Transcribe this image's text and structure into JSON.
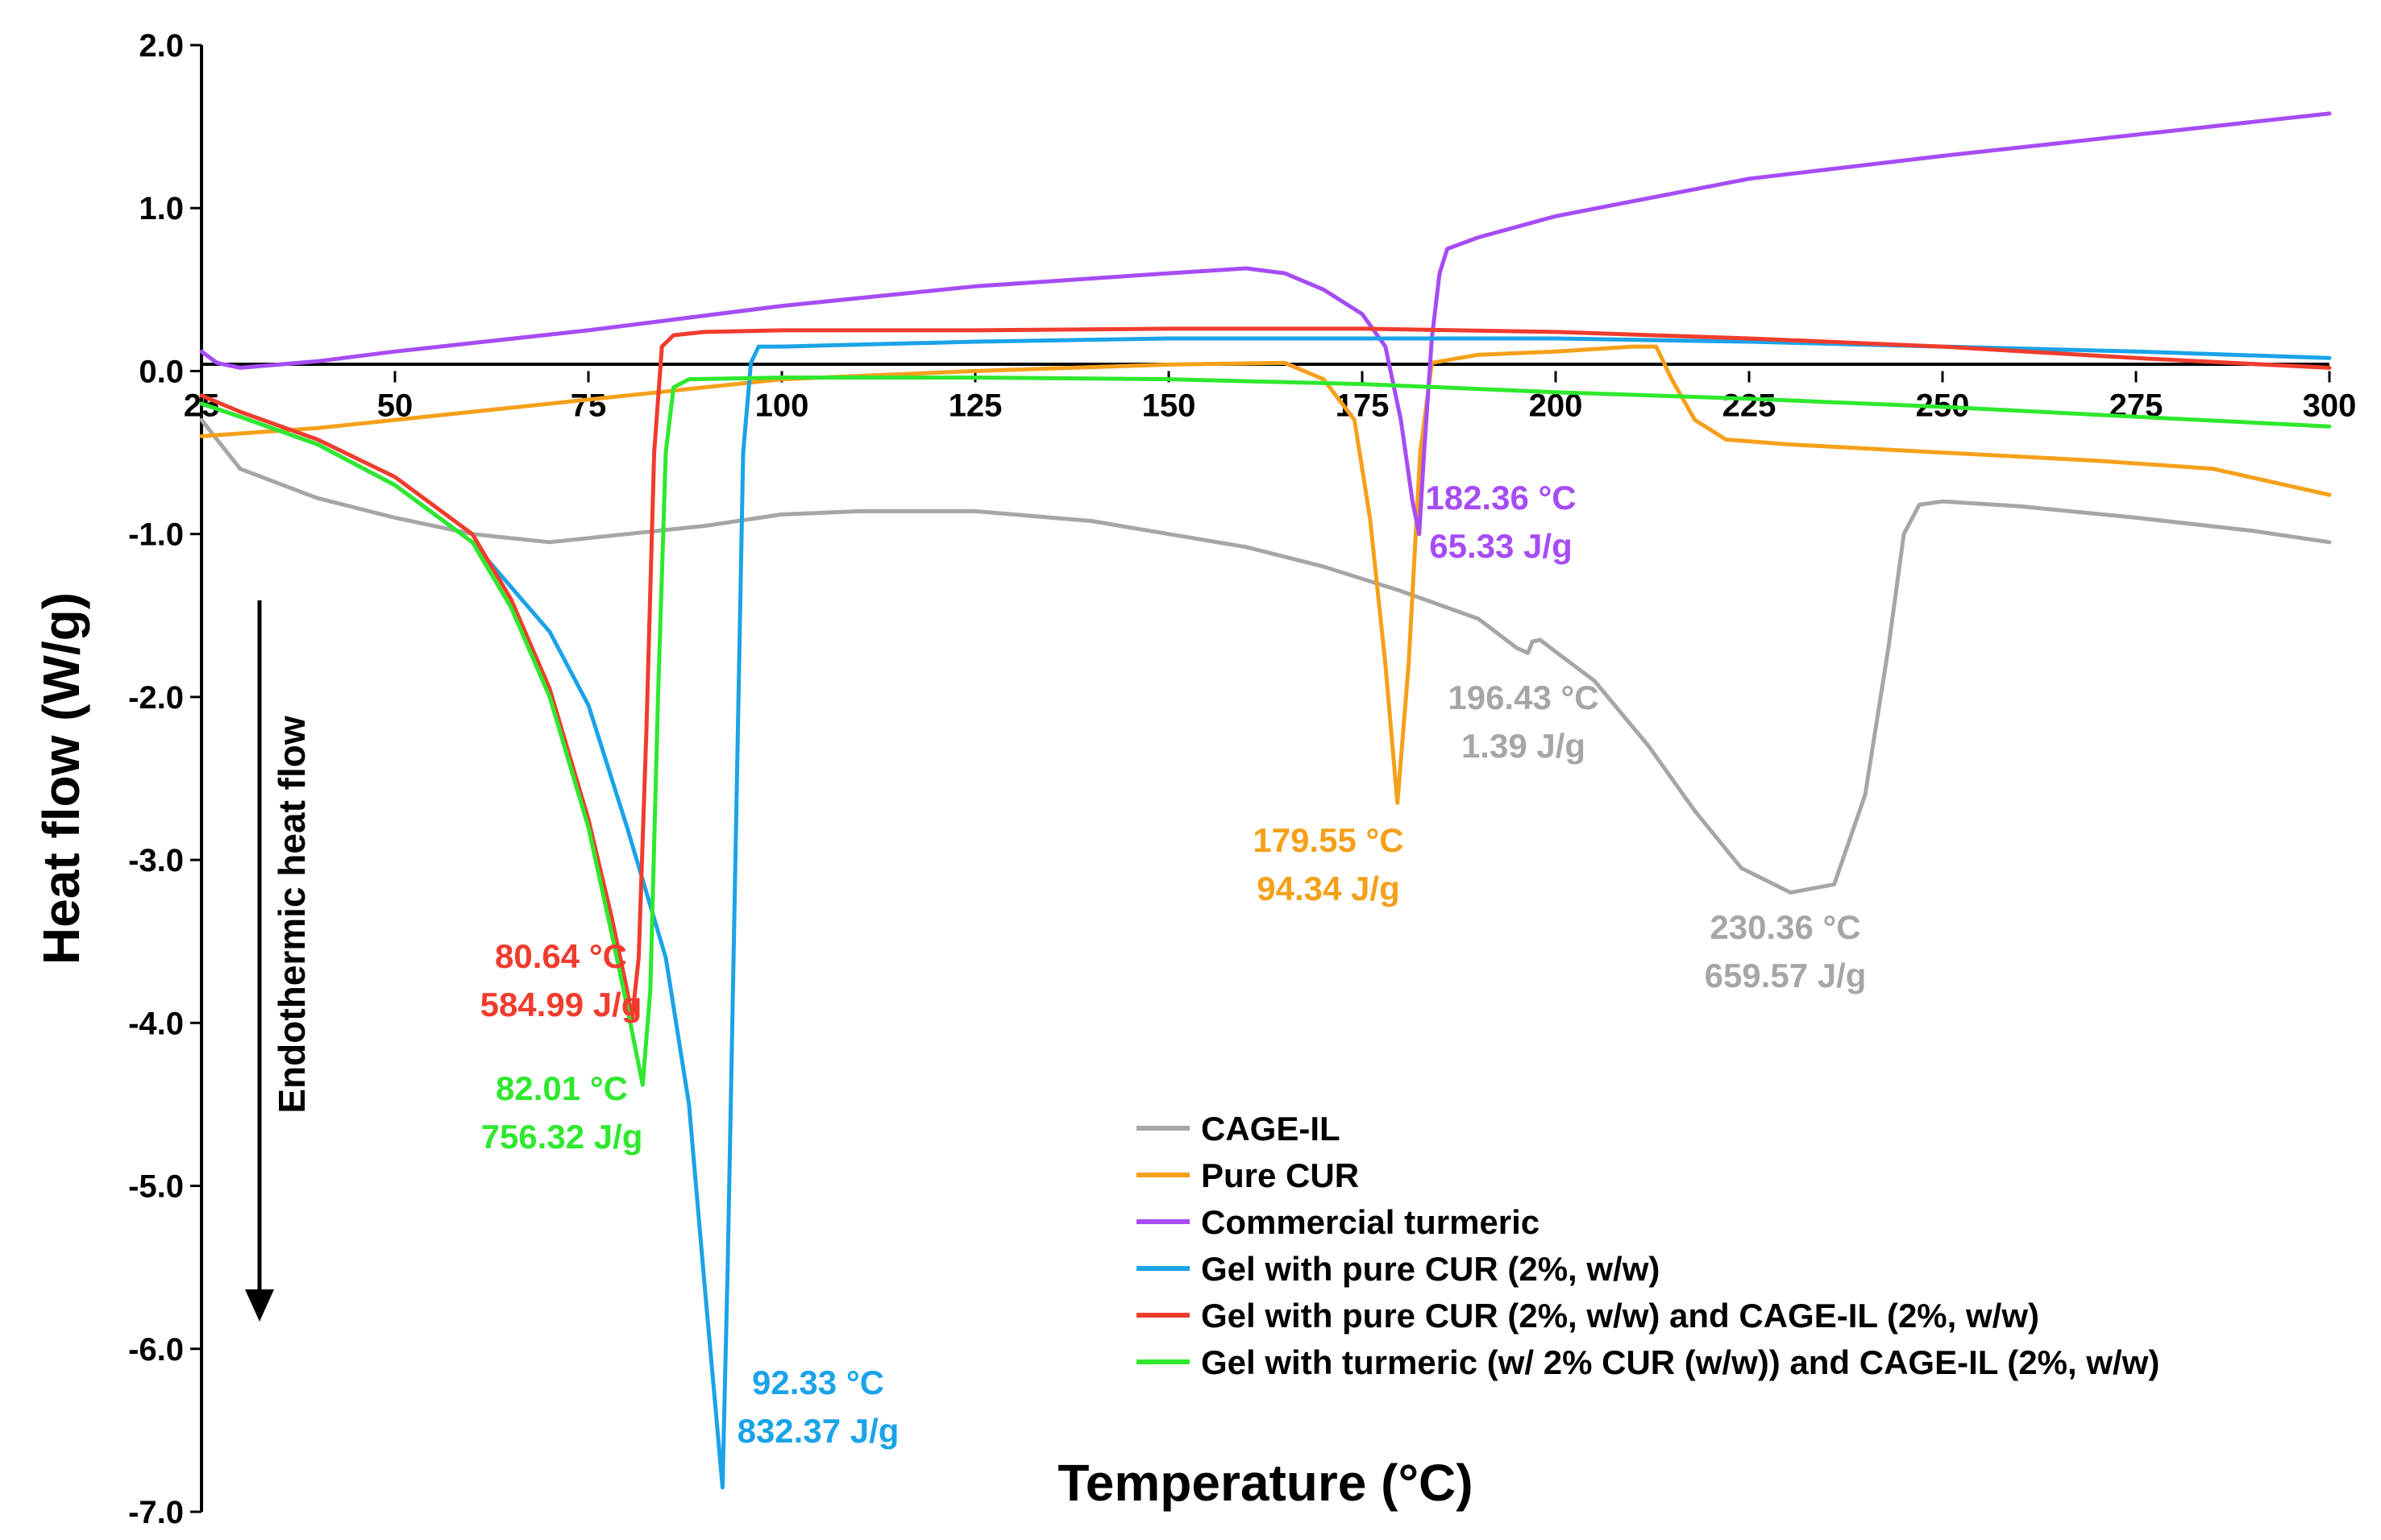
{
  "chart_data": {
    "type": "line",
    "title": "",
    "xlabel": "Temperature (°C)",
    "ylabel": "Heat flow (W/g)",
    "xlim": [
      25,
      300
    ],
    "ylim": [
      -7.0,
      2.0
    ],
    "x_ticks": [
      "25",
      "50",
      "75",
      "100",
      "125",
      "150",
      "175",
      "200",
      "225",
      "250",
      "275",
      "300"
    ],
    "y_ticks": [
      "2.0",
      "1.0",
      "0.0",
      "-1.0",
      "-2.0",
      "-3.0",
      "-4.0",
      "-5.0",
      "-6.0",
      "-7.0"
    ],
    "endotherm_label": "Endothermic heat flow",
    "series": [
      {
        "name": "CAGE-IL",
        "color": "#a6a6a6",
        "points": [
          [
            25,
            -0.3
          ],
          [
            30,
            -0.6
          ],
          [
            40,
            -0.78
          ],
          [
            50,
            -0.9
          ],
          [
            60,
            -1.0
          ],
          [
            70,
            -1.05
          ],
          [
            80,
            -1.0
          ],
          [
            90,
            -0.95
          ],
          [
            100,
            -0.88
          ],
          [
            110,
            -0.86
          ],
          [
            125,
            -0.86
          ],
          [
            140,
            -0.92
          ],
          [
            150,
            -1.0
          ],
          [
            160,
            -1.08
          ],
          [
            170,
            -1.2
          ],
          [
            180,
            -1.35
          ],
          [
            190,
            -1.52
          ],
          [
            195,
            -1.7
          ],
          [
            196.43,
            -1.73
          ],
          [
            197,
            -1.66
          ],
          [
            198,
            -1.65
          ],
          [
            205,
            -1.9
          ],
          [
            212,
            -2.3
          ],
          [
            218,
            -2.7
          ],
          [
            224,
            -3.05
          ],
          [
            230.36,
            -3.2
          ],
          [
            236,
            -3.15
          ],
          [
            240,
            -2.6
          ],
          [
            243,
            -1.7
          ],
          [
            245,
            -1.0
          ],
          [
            247,
            -0.82
          ],
          [
            250,
            -0.8
          ],
          [
            260,
            -0.83
          ],
          [
            275,
            -0.9
          ],
          [
            290,
            -0.98
          ],
          [
            300,
            -1.05
          ]
        ]
      },
      {
        "name": "Pure CUR",
        "color": "#f5a01a",
        "points": [
          [
            25,
            -0.4
          ],
          [
            40,
            -0.35
          ],
          [
            60,
            -0.25
          ],
          [
            80,
            -0.15
          ],
          [
            100,
            -0.05
          ],
          [
            125,
            0.0
          ],
          [
            150,
            0.04
          ],
          [
            165,
            0.05
          ],
          [
            170,
            -0.05
          ],
          [
            174,
            -0.3
          ],
          [
            176,
            -0.9
          ],
          [
            178,
            -1.8
          ],
          [
            179.55,
            -2.65
          ],
          [
            181,
            -1.8
          ],
          [
            182.5,
            -0.5
          ],
          [
            184,
            0.05
          ],
          [
            190,
            0.1
          ],
          [
            200,
            0.12
          ],
          [
            210,
            0.15
          ],
          [
            213,
            0.15
          ],
          [
            215,
            -0.05
          ],
          [
            218,
            -0.3
          ],
          [
            222,
            -0.42
          ],
          [
            230,
            -0.45
          ],
          [
            250,
            -0.5
          ],
          [
            270,
            -0.55
          ],
          [
            285,
            -0.6
          ],
          [
            300,
            -0.76
          ]
        ]
      },
      {
        "name": "Commercial turmeric",
        "color": "#a64cf5",
        "points": [
          [
            25,
            0.12
          ],
          [
            27,
            0.05
          ],
          [
            30,
            0.02
          ],
          [
            40,
            0.06
          ],
          [
            50,
            0.12
          ],
          [
            75,
            0.25
          ],
          [
            100,
            0.4
          ],
          [
            125,
            0.52
          ],
          [
            150,
            0.6
          ],
          [
            160,
            0.63
          ],
          [
            165,
            0.6
          ],
          [
            170,
            0.5
          ],
          [
            175,
            0.35
          ],
          [
            178,
            0.15
          ],
          [
            180,
            -0.3
          ],
          [
            181.5,
            -0.8
          ],
          [
            182.36,
            -1.0
          ],
          [
            183,
            -0.5
          ],
          [
            184,
            0.2
          ],
          [
            185,
            0.6
          ],
          [
            186,
            0.75
          ],
          [
            190,
            0.82
          ],
          [
            200,
            0.95
          ],
          [
            225,
            1.18
          ],
          [
            250,
            1.32
          ],
          [
            275,
            1.45
          ],
          [
            300,
            1.58
          ]
        ]
      },
      {
        "name": "Gel with pure CUR (2%, w/w)",
        "color": "#1aa3e8",
        "points": [
          [
            25,
            -0.2
          ],
          [
            30,
            -0.28
          ],
          [
            40,
            -0.45
          ],
          [
            50,
            -0.7
          ],
          [
            60,
            -1.05
          ],
          [
            70,
            -1.6
          ],
          [
            75,
            -2.05
          ],
          [
            80,
            -2.8
          ],
          [
            85,
            -3.6
          ],
          [
            88,
            -4.5
          ],
          [
            90,
            -5.6
          ],
          [
            91.5,
            -6.4
          ],
          [
            92.33,
            -6.85
          ],
          [
            93,
            -5.5
          ],
          [
            94,
            -3.0
          ],
          [
            95,
            -0.5
          ],
          [
            96,
            0.05
          ],
          [
            97,
            0.15
          ],
          [
            100,
            0.15
          ],
          [
            125,
            0.18
          ],
          [
            150,
            0.2
          ],
          [
            175,
            0.2
          ],
          [
            200,
            0.2
          ],
          [
            225,
            0.18
          ],
          [
            250,
            0.15
          ],
          [
            275,
            0.12
          ],
          [
            300,
            0.08
          ]
        ]
      },
      {
        "name": "Gel with pure CUR (2%, w/w) and CAGE-IL (2%, w/w)",
        "color": "#f03c2d",
        "points": [
          [
            25,
            -0.15
          ],
          [
            30,
            -0.25
          ],
          [
            40,
            -0.42
          ],
          [
            50,
            -0.65
          ],
          [
            60,
            -1.0
          ],
          [
            65,
            -1.4
          ],
          [
            70,
            -1.95
          ],
          [
            75,
            -2.75
          ],
          [
            78,
            -3.35
          ],
          [
            80,
            -3.8
          ],
          [
            80.64,
            -3.98
          ],
          [
            81.5,
            -3.6
          ],
          [
            82.5,
            -2.2
          ],
          [
            83.5,
            -0.5
          ],
          [
            84.5,
            0.15
          ],
          [
            86,
            0.22
          ],
          [
            90,
            0.24
          ],
          [
            100,
            0.25
          ],
          [
            125,
            0.25
          ],
          [
            150,
            0.26
          ],
          [
            175,
            0.26
          ],
          [
            200,
            0.24
          ],
          [
            225,
            0.2
          ],
          [
            250,
            0.15
          ],
          [
            275,
            0.08
          ],
          [
            300,
            0.02
          ]
        ]
      },
      {
        "name": "Gel with turmeric (w/ 2% CUR (w/w)) and CAGE-IL (2%, w/w)",
        "color": "#2ee82e",
        "points": [
          [
            25,
            -0.2
          ],
          [
            30,
            -0.28
          ],
          [
            40,
            -0.45
          ],
          [
            50,
            -0.7
          ],
          [
            60,
            -1.05
          ],
          [
            65,
            -1.45
          ],
          [
            70,
            -2.0
          ],
          [
            75,
            -2.8
          ],
          [
            78,
            -3.45
          ],
          [
            80,
            -3.9
          ],
          [
            82.01,
            -4.38
          ],
          [
            83,
            -3.8
          ],
          [
            84,
            -2.0
          ],
          [
            85,
            -0.5
          ],
          [
            86,
            -0.1
          ],
          [
            88,
            -0.05
          ],
          [
            100,
            -0.04
          ],
          [
            125,
            -0.04
          ],
          [
            150,
            -0.05
          ],
          [
            175,
            -0.08
          ],
          [
            200,
            -0.13
          ],
          [
            225,
            -0.17
          ],
          [
            250,
            -0.22
          ],
          [
            275,
            -0.28
          ],
          [
            300,
            -0.34
          ]
        ]
      }
    ],
    "annotations": [
      {
        "series": "CAGE-IL",
        "lines": [
          "196.43 °C",
          "1.39 J/g"
        ],
        "color": "#a6a6a6"
      },
      {
        "series": "CAGE-IL",
        "lines": [
          "230.36 °C",
          "659.57 J/g"
        ],
        "color": "#a6a6a6"
      },
      {
        "series": "Pure CUR",
        "lines": [
          "179.55 °C",
          "94.34 J/g"
        ],
        "color": "#f5a01a"
      },
      {
        "series": "Commercial turmeric",
        "lines": [
          "182.36 °C",
          "65.33 J/g"
        ],
        "color": "#a64cf5"
      },
      {
        "series": "Gel with pure CUR (2%, w/w)",
        "lines": [
          "92.33 °C",
          "832.37 J/g"
        ],
        "color": "#1aa3e8"
      },
      {
        "series": "Gel with pure CUR (2%, w/w) and CAGE-IL (2%, w/w)",
        "lines": [
          "80.64 °C",
          "584.99 J/g"
        ],
        "color": "#f03c2d"
      },
      {
        "series": "Gel with turmeric (w/ 2% CUR (w/w)) and CAGE-IL (2%, w/w)",
        "lines": [
          "82.01 °C",
          "756.32 J/g"
        ],
        "color": "#2ee82e"
      }
    ],
    "legend_position": "bottom-right"
  }
}
